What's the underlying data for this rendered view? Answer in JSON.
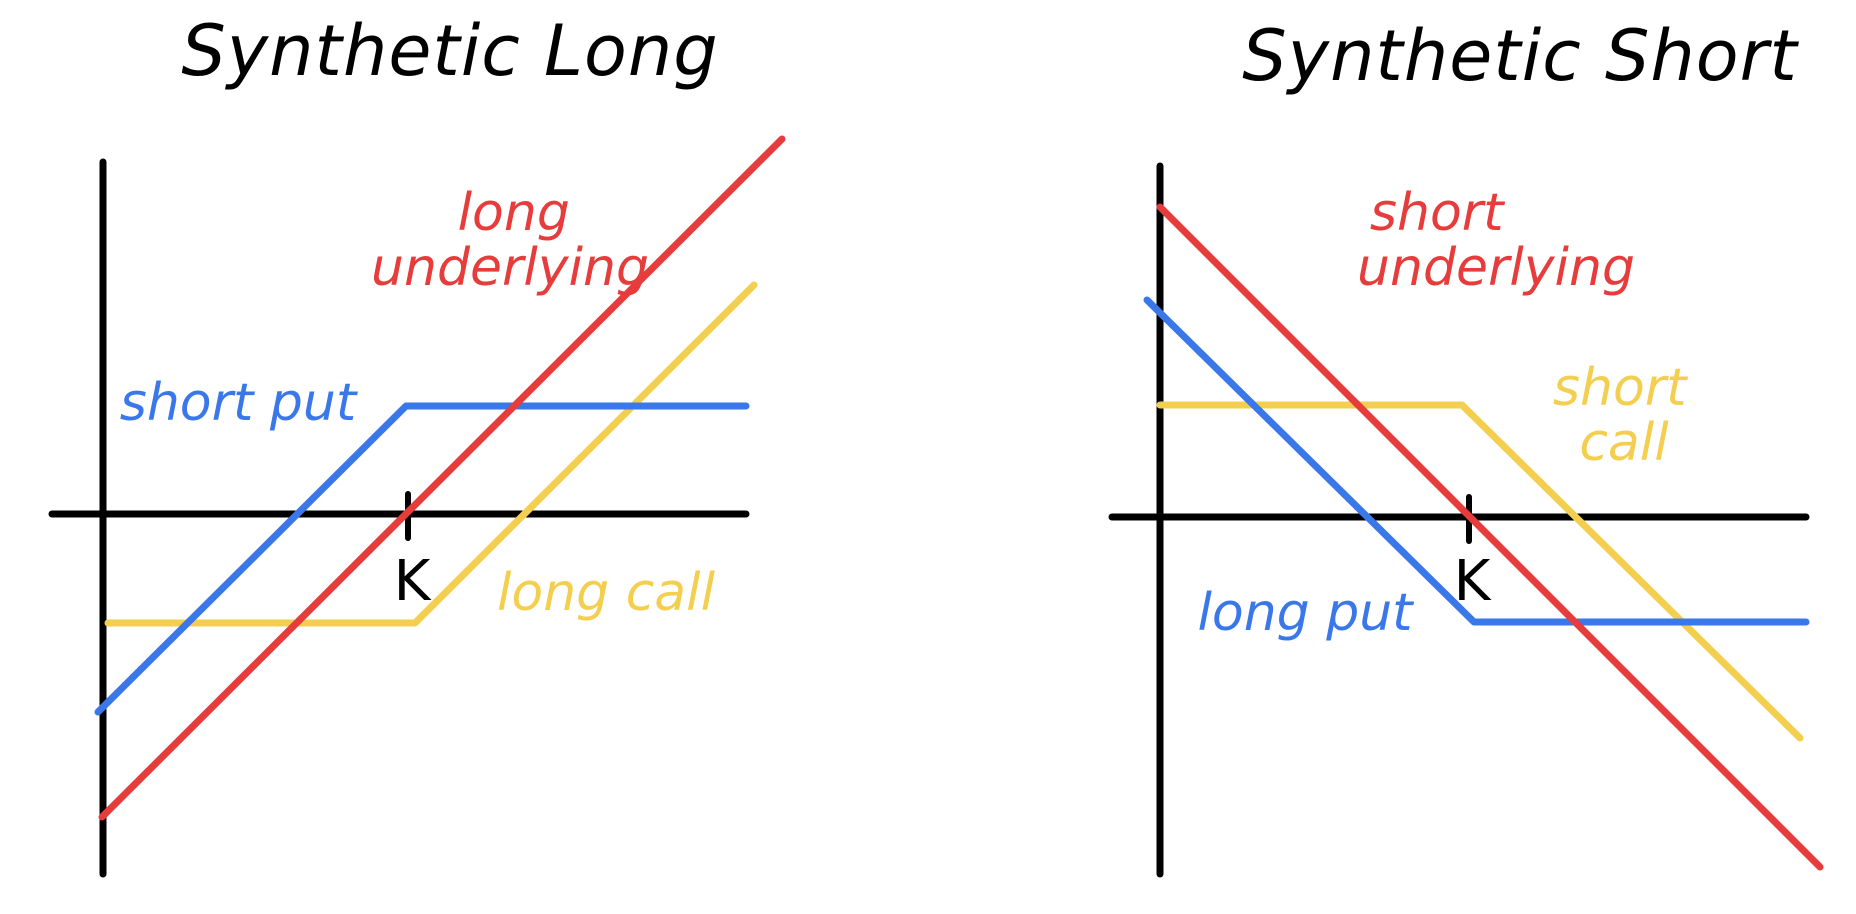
{
  "colors": {
    "axis": "#000000",
    "underlying": "#e63c3c",
    "put": "#3a78ea",
    "call": "#f4cf4f"
  },
  "panels": [
    {
      "title": "Synthetic Long",
      "strike_label": "K",
      "labels": {
        "underlying": [
          "long",
          "underlying"
        ],
        "put": [
          "short put"
        ],
        "call": [
          "long call"
        ]
      }
    },
    {
      "title": "Synthetic Short",
      "strike_label": "K",
      "labels": {
        "underlying": [
          "short",
          "underlying"
        ],
        "put": [
          "long put"
        ],
        "call": [
          "short",
          "call"
        ]
      }
    }
  ]
}
